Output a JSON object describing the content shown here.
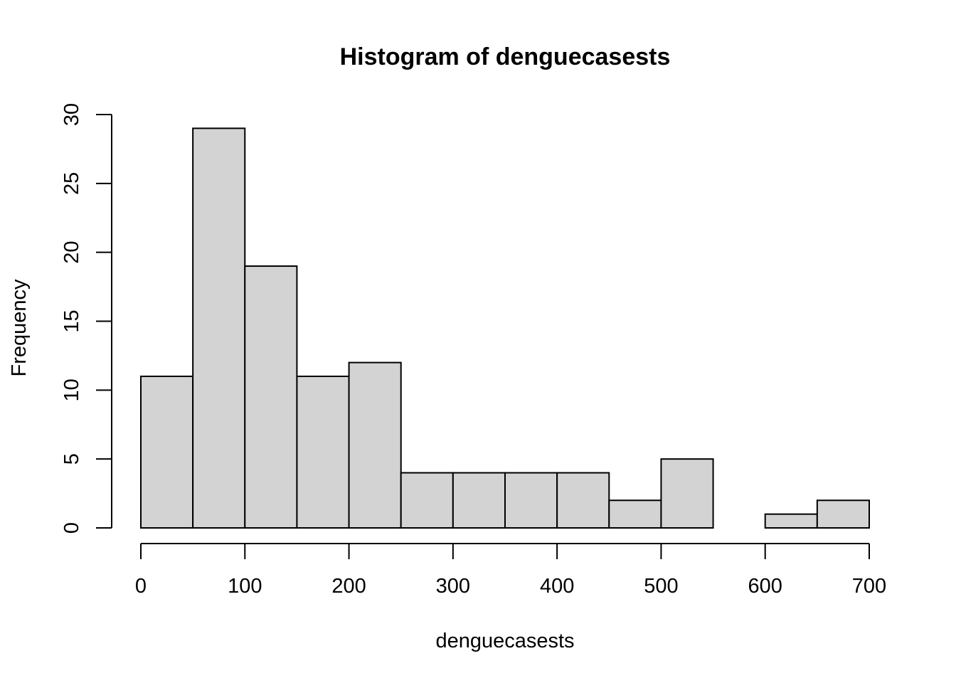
{
  "chart_data": {
    "type": "bar",
    "title": "Histogram of denguecasests",
    "xlabel": "denguecasests",
    "ylabel": "Frequency",
    "bin_edges": [
      0,
      50,
      100,
      150,
      200,
      250,
      300,
      350,
      400,
      450,
      500,
      550,
      600,
      650,
      700
    ],
    "values": [
      11,
      29,
      19,
      11,
      12,
      4,
      4,
      4,
      4,
      2,
      5,
      0,
      1,
      2
    ],
    "xlim": [
      0,
      700
    ],
    "ylim": [
      0,
      30
    ],
    "x_ticks": [
      0,
      100,
      200,
      300,
      400,
      500,
      600,
      700
    ],
    "y_ticks": [
      0,
      5,
      10,
      15,
      20,
      25,
      30
    ],
    "bar_color": "#d3d3d3",
    "grid": false,
    "legend": "none"
  }
}
